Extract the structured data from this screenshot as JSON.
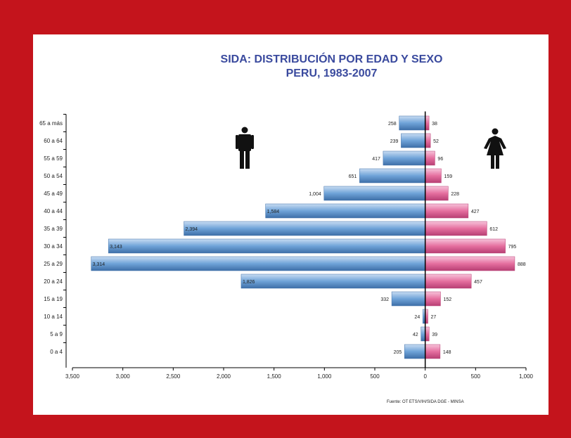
{
  "chart_data": {
    "type": "bar",
    "title": "SIDA: DISTRIBUCIÓN POR EDAD Y SEXO",
    "subtitle": "PERU, 1983-2007",
    "categories": [
      "65 a más",
      "60 a 64",
      "55 a 59",
      "50 a 54",
      "45 a 49",
      "40 a 44",
      "35 a 39",
      "30 a 34",
      "25 a 29",
      "20 a 24",
      "15 a 19",
      "10 a 14",
      "5 a 9",
      "0 a 4"
    ],
    "series": [
      {
        "values": [
          258,
          239,
          417,
          651,
          1004,
          1584,
          2394,
          3143,
          3314,
          1826,
          332,
          24,
          42,
          205
        ],
        "labels": [
          "258",
          "239",
          "417",
          "651",
          "1,004",
          "1,584",
          "2,394",
          "3,143",
          "3,314",
          "1,826",
          "332",
          "24",
          "42",
          "205"
        ],
        "color": "#6fa3d8"
      },
      {
        "values": [
          38,
          52,
          96,
          159,
          228,
          427,
          612,
          795,
          888,
          457,
          152,
          27,
          39,
          148
        ],
        "labels": [
          "38",
          "52",
          "96",
          "159",
          "228",
          "427",
          "612",
          "795",
          "888",
          "457",
          "152",
          "27",
          "39",
          "148"
        ],
        "color": "#e56f9f"
      }
    ],
    "x_ticks": [
      "3,500",
      "3,000",
      "2,500",
      "2,000",
      "1,500",
      "1,000",
      "500",
      "0",
      "500",
      "1,000"
    ],
    "xlim_left": 3500,
    "xlim_right": 1000,
    "grid": false,
    "source": "Fuente: OT ETS/VIH/SIDA DGE - MINSA"
  },
  "icons": {
    "male": "male-figure-icon",
    "female": "female-figure-icon"
  }
}
